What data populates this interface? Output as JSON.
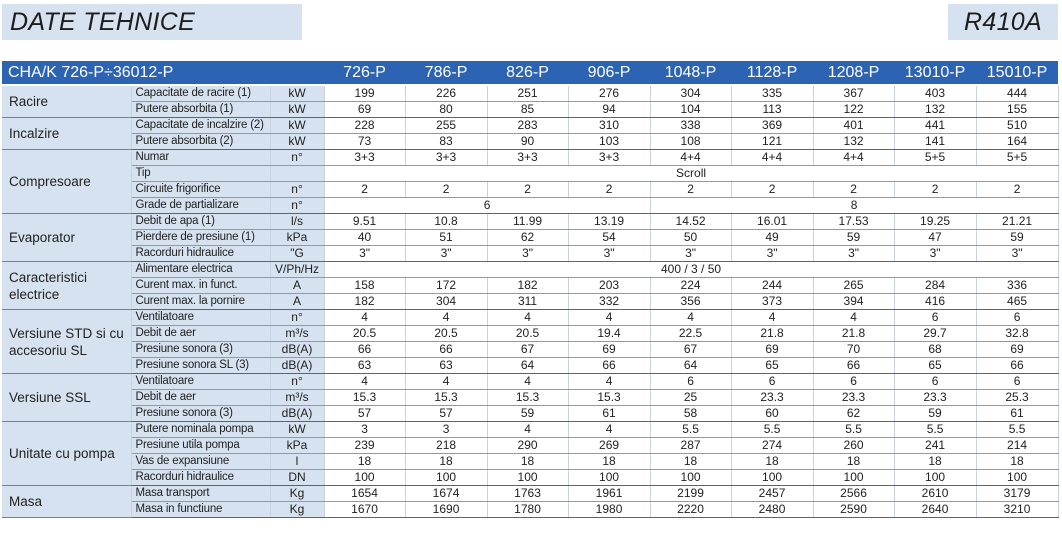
{
  "header": {
    "title": "DATE TEHNICE",
    "refrigerant": "R410A"
  },
  "table": {
    "model_header": "CHA/K 726-P÷36012-P",
    "models": [
      "726-P",
      "786-P",
      "826-P",
      "906-P",
      "1048-P",
      "1128-P",
      "1208-P",
      "13010-P",
      "15010-P"
    ],
    "groups": [
      {
        "name": "Racire",
        "rows": [
          {
            "param": "Capacitate de racire (1)",
            "unit": "kW",
            "values": [
              "199",
              "226",
              "251",
              "276",
              "304",
              "335",
              "367",
              "403",
              "444"
            ]
          },
          {
            "param": "Putere absorbita (1)",
            "unit": "kW",
            "values": [
              "69",
              "80",
              "85",
              "94",
              "104",
              "113",
              "122",
              "132",
              "155"
            ]
          }
        ]
      },
      {
        "name": "Incalzire",
        "rows": [
          {
            "param": "Capacitate de incalzire (2)",
            "unit": "kW",
            "values": [
              "228",
              "255",
              "283",
              "310",
              "338",
              "369",
              "401",
              "441",
              "510"
            ]
          },
          {
            "param": "Putere absorbita (2)",
            "unit": "kW",
            "values": [
              "73",
              "83",
              "90",
              "103",
              "108",
              "121",
              "132",
              "141",
              "164"
            ]
          }
        ]
      },
      {
        "name": "Compresoare",
        "rows": [
          {
            "param": "Numar",
            "unit": "n°",
            "values": [
              "3+3",
              "3+3",
              "3+3",
              "3+3",
              "4+4",
              "4+4",
              "4+4",
              "5+5",
              "5+5"
            ]
          },
          {
            "param": "Tip",
            "unit": "",
            "span_values": [
              {
                "span": 9,
                "value": "Scroll"
              }
            ]
          },
          {
            "param": "Circuite frigorifice",
            "unit": "n°",
            "values": [
              "2",
              "2",
              "2",
              "2",
              "2",
              "2",
              "2",
              "2",
              "2"
            ]
          },
          {
            "param": "Grade de partializare",
            "unit": "n°",
            "span_values": [
              {
                "span": 4,
                "value": "6"
              },
              {
                "span": 5,
                "value": "8"
              }
            ]
          }
        ]
      },
      {
        "name": "Evaporator",
        "rows": [
          {
            "param": "Debit de apa (1)",
            "unit": "l/s",
            "values": [
              "9.51",
              "10.8",
              "11.99",
              "13.19",
              "14.52",
              "16.01",
              "17.53",
              "19.25",
              "21.21"
            ]
          },
          {
            "param": "Pierdere de presiune (1)",
            "unit": "kPa",
            "values": [
              "40",
              "51",
              "62",
              "54",
              "50",
              "49",
              "59",
              "47",
              "59"
            ]
          },
          {
            "param": "Racorduri hidraulice",
            "unit": "\"G",
            "values": [
              "3\"",
              "3\"",
              "3\"",
              "3\"",
              "3\"",
              "3\"",
              "3\"",
              "3\"",
              "3\""
            ]
          }
        ]
      },
      {
        "name": "Caracteristici electrice",
        "rows": [
          {
            "param": "Alimentare electrica",
            "unit": "V/Ph/Hz",
            "span_values": [
              {
                "span": 9,
                "value": "400 / 3 / 50"
              }
            ]
          },
          {
            "param": "Curent max. in funct.",
            "unit": "A",
            "values": [
              "158",
              "172",
              "182",
              "203",
              "224",
              "244",
              "265",
              "284",
              "336"
            ]
          },
          {
            "param": "Curent max. la pornire",
            "unit": "A",
            "values": [
              "182",
              "304",
              "311",
              "332",
              "356",
              "373",
              "394",
              "416",
              "465"
            ]
          }
        ]
      },
      {
        "name": "Versiune STD si cu accesoriu SL",
        "rows": [
          {
            "param": "Ventilatoare",
            "unit": "n°",
            "values": [
              "4",
              "4",
              "4",
              "4",
              "4",
              "4",
              "4",
              "6",
              "6"
            ]
          },
          {
            "param": "Debit de aer",
            "unit": "m³/s",
            "values": [
              "20.5",
              "20.5",
              "20.5",
              "19.4",
              "22.5",
              "21.8",
              "21.8",
              "29.7",
              "32.8"
            ]
          },
          {
            "param": "Presiune sonora (3)",
            "unit": "dB(A)",
            "values": [
              "66",
              "66",
              "67",
              "69",
              "67",
              "69",
              "70",
              "68",
              "69"
            ]
          },
          {
            "param": "Presiune sonora SL (3)",
            "unit": "dB(A)",
            "values": [
              "63",
              "63",
              "64",
              "66",
              "64",
              "65",
              "66",
              "65",
              "66"
            ]
          }
        ]
      },
      {
        "name": "Versiune SSL",
        "rows": [
          {
            "param": "Ventilatoare",
            "unit": "n°",
            "values": [
              "4",
              "4",
              "4",
              "4",
              "6",
              "6",
              "6",
              "6",
              "6"
            ]
          },
          {
            "param": "Debit de aer",
            "unit": "m³/s",
            "values": [
              "15.3",
              "15.3",
              "15.3",
              "15.3",
              "25",
              "23.3",
              "23.3",
              "23.3",
              "25.3"
            ]
          },
          {
            "param": "Presiune sonora (3)",
            "unit": "dB(A)",
            "values": [
              "57",
              "57",
              "59",
              "61",
              "58",
              "60",
              "62",
              "59",
              "61"
            ]
          }
        ]
      },
      {
        "name": "Unitate cu pompa",
        "rows": [
          {
            "param": "Putere nominala pompa",
            "unit": "kW",
            "values": [
              "3",
              "3",
              "4",
              "4",
              "5.5",
              "5.5",
              "5.5",
              "5.5",
              "5.5"
            ]
          },
          {
            "param": "Presiune utila pompa",
            "unit": "kPa",
            "values": [
              "239",
              "218",
              "290",
              "269",
              "287",
              "274",
              "260",
              "241",
              "214"
            ]
          },
          {
            "param": "Vas de expansiune",
            "unit": "l",
            "values": [
              "18",
              "18",
              "18",
              "18",
              "18",
              "18",
              "18",
              "18",
              "18"
            ]
          },
          {
            "param": "Racorduri hidraulice",
            "unit": "DN",
            "values": [
              "100",
              "100",
              "100",
              "100",
              "100",
              "100",
              "100",
              "100",
              "100"
            ]
          }
        ]
      },
      {
        "name": "Masa",
        "rows": [
          {
            "param": "Masa transport",
            "unit": "Kg",
            "values": [
              "1654",
              "1674",
              "1763",
              "1961",
              "2199",
              "2457",
              "2566",
              "2610",
              "3179"
            ]
          },
          {
            "param": "Masa in functiune",
            "unit": "Kg",
            "values": [
              "1670",
              "1690",
              "1780",
              "1980",
              "2220",
              "2480",
              "2590",
              "2640",
              "3210"
            ]
          }
        ]
      }
    ]
  }
}
